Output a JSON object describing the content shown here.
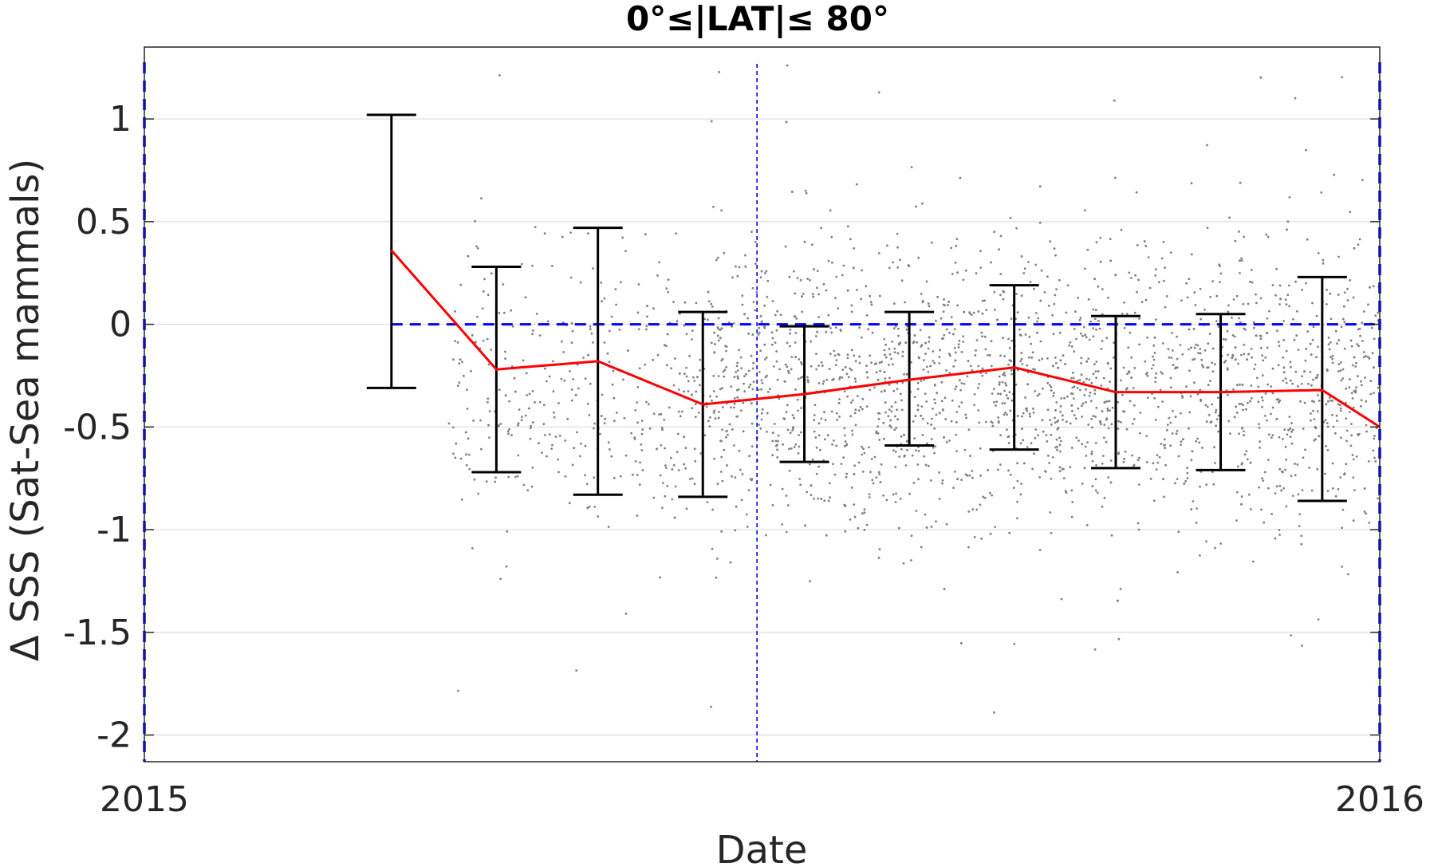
{
  "chart_data": {
    "type": "line",
    "title": "0°≤|LAT|≤ 80°",
    "xlabel": "Date",
    "ylabel": "Δ SSS (Sat-Sea mammals)",
    "xlim": [
      "2015-01-01",
      "2016-01-01"
    ],
    "ylim": [
      -2.13,
      1.35
    ],
    "x_ticks": [
      "2015",
      "2016"
    ],
    "y_ticks": [
      "-2",
      "-1.5",
      "-1",
      "-0.5",
      "0",
      "0.5",
      "1"
    ],
    "y_tick_values": [
      -2,
      -1.5,
      -1,
      -0.5,
      0,
      0.5,
      1
    ],
    "grid": "horizontal",
    "mean_series": {
      "color": "#ff0000",
      "points": [
        {
          "x": "2015-03-15",
          "y": 0.36
        },
        {
          "x": "2015-04-15",
          "y": -0.22
        },
        {
          "x": "2015-05-15",
          "y": -0.18
        },
        {
          "x": "2015-06-15",
          "y": -0.39
        },
        {
          "x": "2015-07-15",
          "y": -0.34
        },
        {
          "x": "2015-08-15",
          "y": -0.27
        },
        {
          "x": "2015-09-15",
          "y": -0.21
        },
        {
          "x": "2015-10-15",
          "y": -0.33
        },
        {
          "x": "2015-11-15",
          "y": -0.33
        },
        {
          "x": "2015-12-15",
          "y": -0.32
        },
        {
          "x": "2016-01-01",
          "y": -0.5
        }
      ]
    },
    "error_bars": {
      "color": "#000000",
      "bars": [
        {
          "x": "2015-03-15",
          "low": -0.31,
          "high": 1.02
        },
        {
          "x": "2015-04-15",
          "low": -0.72,
          "high": 0.28
        },
        {
          "x": "2015-05-15",
          "low": -0.83,
          "high": 0.47
        },
        {
          "x": "2015-06-15",
          "low": -0.84,
          "high": 0.06
        },
        {
          "x": "2015-07-15",
          "low": -0.67,
          "high": -0.01
        },
        {
          "x": "2015-08-15",
          "low": -0.59,
          "high": 0.06
        },
        {
          "x": "2015-09-15",
          "low": -0.61,
          "high": 0.19
        },
        {
          "x": "2015-10-15",
          "low": -0.7,
          "high": 0.04
        },
        {
          "x": "2015-11-15",
          "low": -0.71,
          "high": 0.05
        },
        {
          "x": "2015-12-15",
          "low": -0.86,
          "high": 0.23
        }
      ]
    },
    "scatter": {
      "color": "#808080",
      "description_of_density": "individual match-up points, densest between 2015-06 and 2016-01",
      "x_range": [
        "2015-04-01",
        "2016-01-01"
      ],
      "y_center": -0.3,
      "y_spread": 0.35
    },
    "reference_lines": [
      {
        "orientation": "horizontal",
        "y": 0,
        "style": "dashed",
        "color": "#0000ff"
      },
      {
        "orientation": "vertical",
        "x": "2015-01-01",
        "style": "dashed",
        "color": "#0000ff"
      },
      {
        "orientation": "vertical",
        "x": "2015-07-01",
        "style": "dashed-thin",
        "color": "#0000ff"
      },
      {
        "orientation": "vertical",
        "x": "2016-01-01",
        "style": "dashed",
        "color": "#0000ff"
      }
    ]
  }
}
